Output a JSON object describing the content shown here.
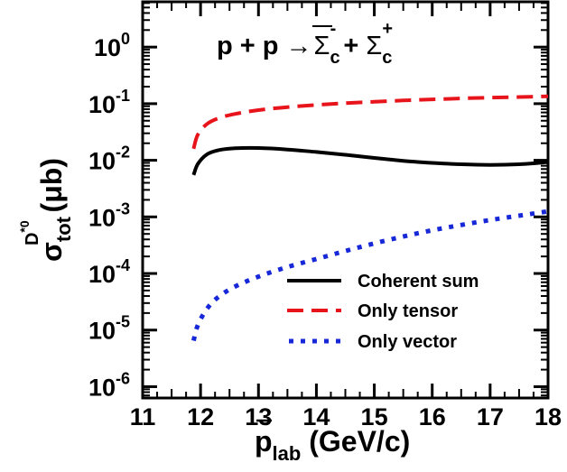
{
  "chart_data": {
    "type": "line",
    "title": {
      "prefix": "p + p ",
      "arrow": "→",
      "sigma_minus": "Σ",
      "sigma_minus_sub": "c",
      "sigma_minus_sup": "-",
      "plus": " + ",
      "sigma_plus": "Σ",
      "sigma_plus_sub": "c",
      "sigma_plus_sup": "+"
    },
    "xlabel": {
      "main": "p",
      "sub": "lab",
      "unit": " (GeV/c)"
    },
    "ylabel": {
      "main": "σ",
      "sub": "tot",
      "sup": "D",
      "supsup": "*0",
      "unit": " (μb)"
    },
    "x_ticks": [
      "11",
      "12",
      "13",
      "14",
      "15",
      "16",
      "17",
      "18"
    ],
    "y_ticks": [
      {
        "base": "10",
        "exp": "0"
      },
      {
        "base": "10",
        "exp": "-1"
      },
      {
        "base": "10",
        "exp": "-2"
      },
      {
        "base": "10",
        "exp": "-3"
      },
      {
        "base": "10",
        "exp": "-4"
      },
      {
        "base": "10",
        "exp": "-5"
      },
      {
        "base": "10",
        "exp": "-6"
      }
    ],
    "xlim": [
      11,
      18
    ],
    "ylim_log10": [
      -6.2,
      0.8
    ],
    "y_scale": "log",
    "grid": false,
    "legend_position": "bottom-right",
    "series": [
      {
        "name": "Coherent sum",
        "color": "#000000",
        "style": "solid",
        "x": [
          11.88,
          11.95,
          12.1,
          12.3,
          12.6,
          13.0,
          13.5,
          14.0,
          14.5,
          15.0,
          15.5,
          16.0,
          16.5,
          17.0,
          17.5,
          18.0
        ],
        "y": [
          0.0055,
          0.0085,
          0.0125,
          0.015,
          0.0163,
          0.0165,
          0.0155,
          0.014,
          0.0125,
          0.011,
          0.0098,
          0.009,
          0.0085,
          0.0083,
          0.0085,
          0.0093
        ]
      },
      {
        "name": "Only tensor",
        "color": "#e8141b",
        "style": "dashed",
        "x": [
          11.88,
          11.95,
          12.1,
          12.3,
          12.6,
          13.0,
          13.5,
          14.0,
          14.5,
          15.0,
          15.5,
          16.0,
          16.5,
          17.0,
          17.5,
          18.0
        ],
        "y": [
          0.016,
          0.028,
          0.043,
          0.055,
          0.066,
          0.077,
          0.087,
          0.095,
          0.102,
          0.108,
          0.114,
          0.119,
          0.124,
          0.128,
          0.131,
          0.135
        ]
      },
      {
        "name": "Only vector",
        "color": "#1728d8",
        "style": "dotted",
        "x": [
          11.88,
          11.95,
          12.1,
          12.3,
          12.6,
          13.0,
          13.5,
          14.0,
          14.5,
          15.0,
          15.5,
          16.0,
          16.5,
          17.0,
          17.5,
          18.0
        ],
        "y": [
          6.5e-06,
          1.2e-05,
          2.3e-05,
          3.8e-05,
          5.9e-05,
          8.8e-05,
          0.00013,
          0.00018,
          0.00025,
          0.00034,
          0.00045,
          0.00058,
          0.00072,
          0.00088,
          0.00105,
          0.00125
        ]
      }
    ]
  }
}
